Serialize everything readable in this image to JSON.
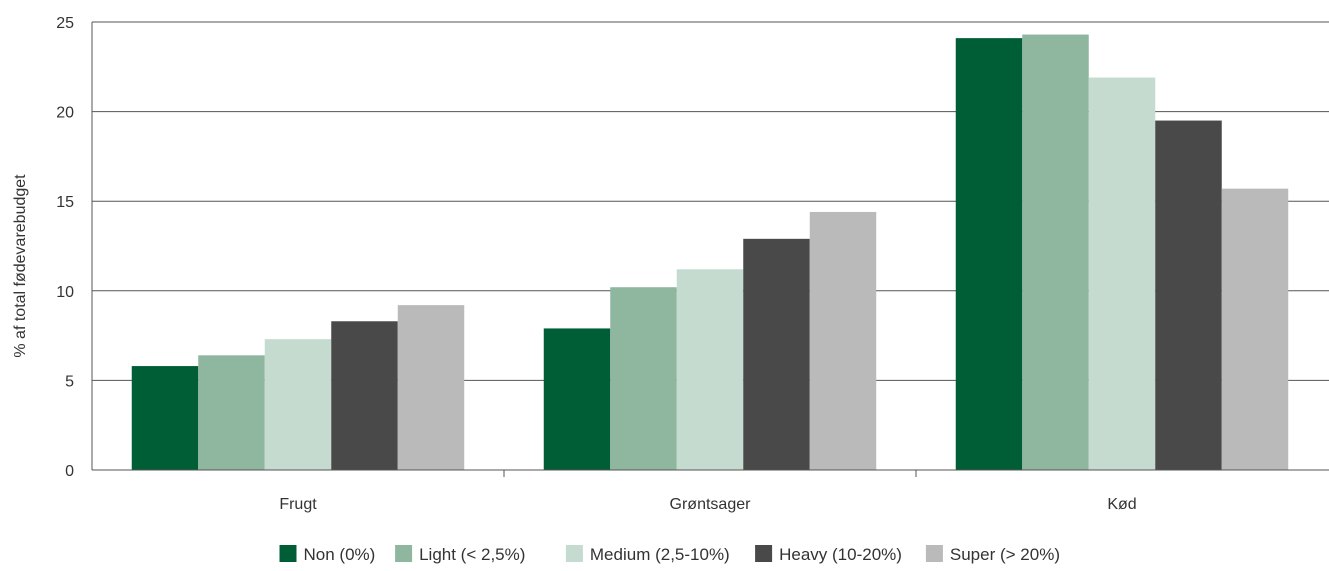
{
  "chart_data": {
    "type": "bar",
    "title": "",
    "xlabel": "",
    "ylabel": "% af total fødevarebudget",
    "ylim": [
      0,
      25
    ],
    "yticks": [
      0,
      5,
      10,
      15,
      20,
      25
    ],
    "grid": true,
    "legend_position": "bottom",
    "categories": [
      "Frugt",
      "Grøntsager",
      "Kød"
    ],
    "series": [
      {
        "name": "Non (0%)",
        "color": "#005e37",
        "values": [
          5.8,
          7.9,
          24.1
        ]
      },
      {
        "name": "Light (< 2,5%)",
        "color": "#8fb69f",
        "values": [
          6.4,
          10.2,
          24.3
        ]
      },
      {
        "name": "Medium (2,5-10%)",
        "color": "#c5dbd0",
        "values": [
          7.3,
          11.2,
          21.9
        ]
      },
      {
        "name": "Heavy (10-20%)",
        "color": "#494949",
        "values": [
          8.3,
          12.9,
          19.5
        ]
      },
      {
        "name": "Super (> 20%)",
        "color": "#bababa",
        "values": [
          9.2,
          14.4,
          15.7
        ]
      }
    ]
  }
}
